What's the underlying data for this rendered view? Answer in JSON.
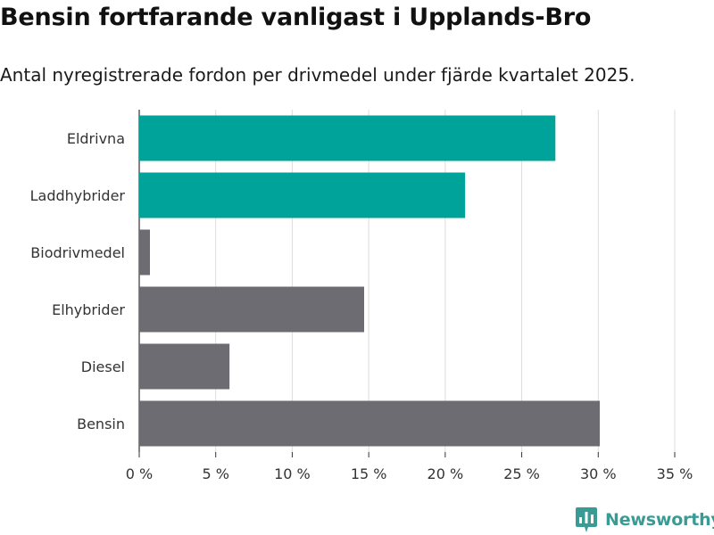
{
  "header": {
    "title": "Bensin fortfarande vanligast i Upplands-Bro",
    "subtitle": "Antal nyregistrerade fordon per drivmedel under fjärde kvartalet 2025."
  },
  "chart_data": {
    "type": "bar",
    "orientation": "horizontal",
    "title": "Bensin fortfarande vanligast i Upplands-Bro",
    "subtitle": "Antal nyregistrerade fordon per drivmedel under fjärde kvartalet 2025.",
    "xlabel": "",
    "ylabel": "",
    "categories": [
      "Eldrivna",
      "Laddhybrider",
      "Biodrivmedel",
      "Elhybrider",
      "Diesel",
      "Bensin"
    ],
    "values": [
      27.2,
      21.3,
      0.7,
      14.7,
      5.9,
      30.1
    ],
    "bar_colors": [
      "#00a39a",
      "#00a39a",
      "#6d6c72",
      "#6d6c72",
      "#6d6c72",
      "#6d6c72"
    ],
    "xlim": [
      0,
      35
    ],
    "x_ticks": [
      0,
      5,
      10,
      15,
      20,
      25,
      30,
      35
    ],
    "x_tick_labels": [
      "0 %",
      "5 %",
      "10 %",
      "15 %",
      "20 %",
      "25 %",
      "30 %",
      "35 %"
    ],
    "grid": true
  },
  "colors": {
    "highlight": "#00a39a",
    "default_bar": "#6d6c72",
    "grid": "#dddddd",
    "brand": "#3a9b94"
  },
  "logo": {
    "text": "Newsworthy",
    "icon": "bar-chart-icon"
  }
}
